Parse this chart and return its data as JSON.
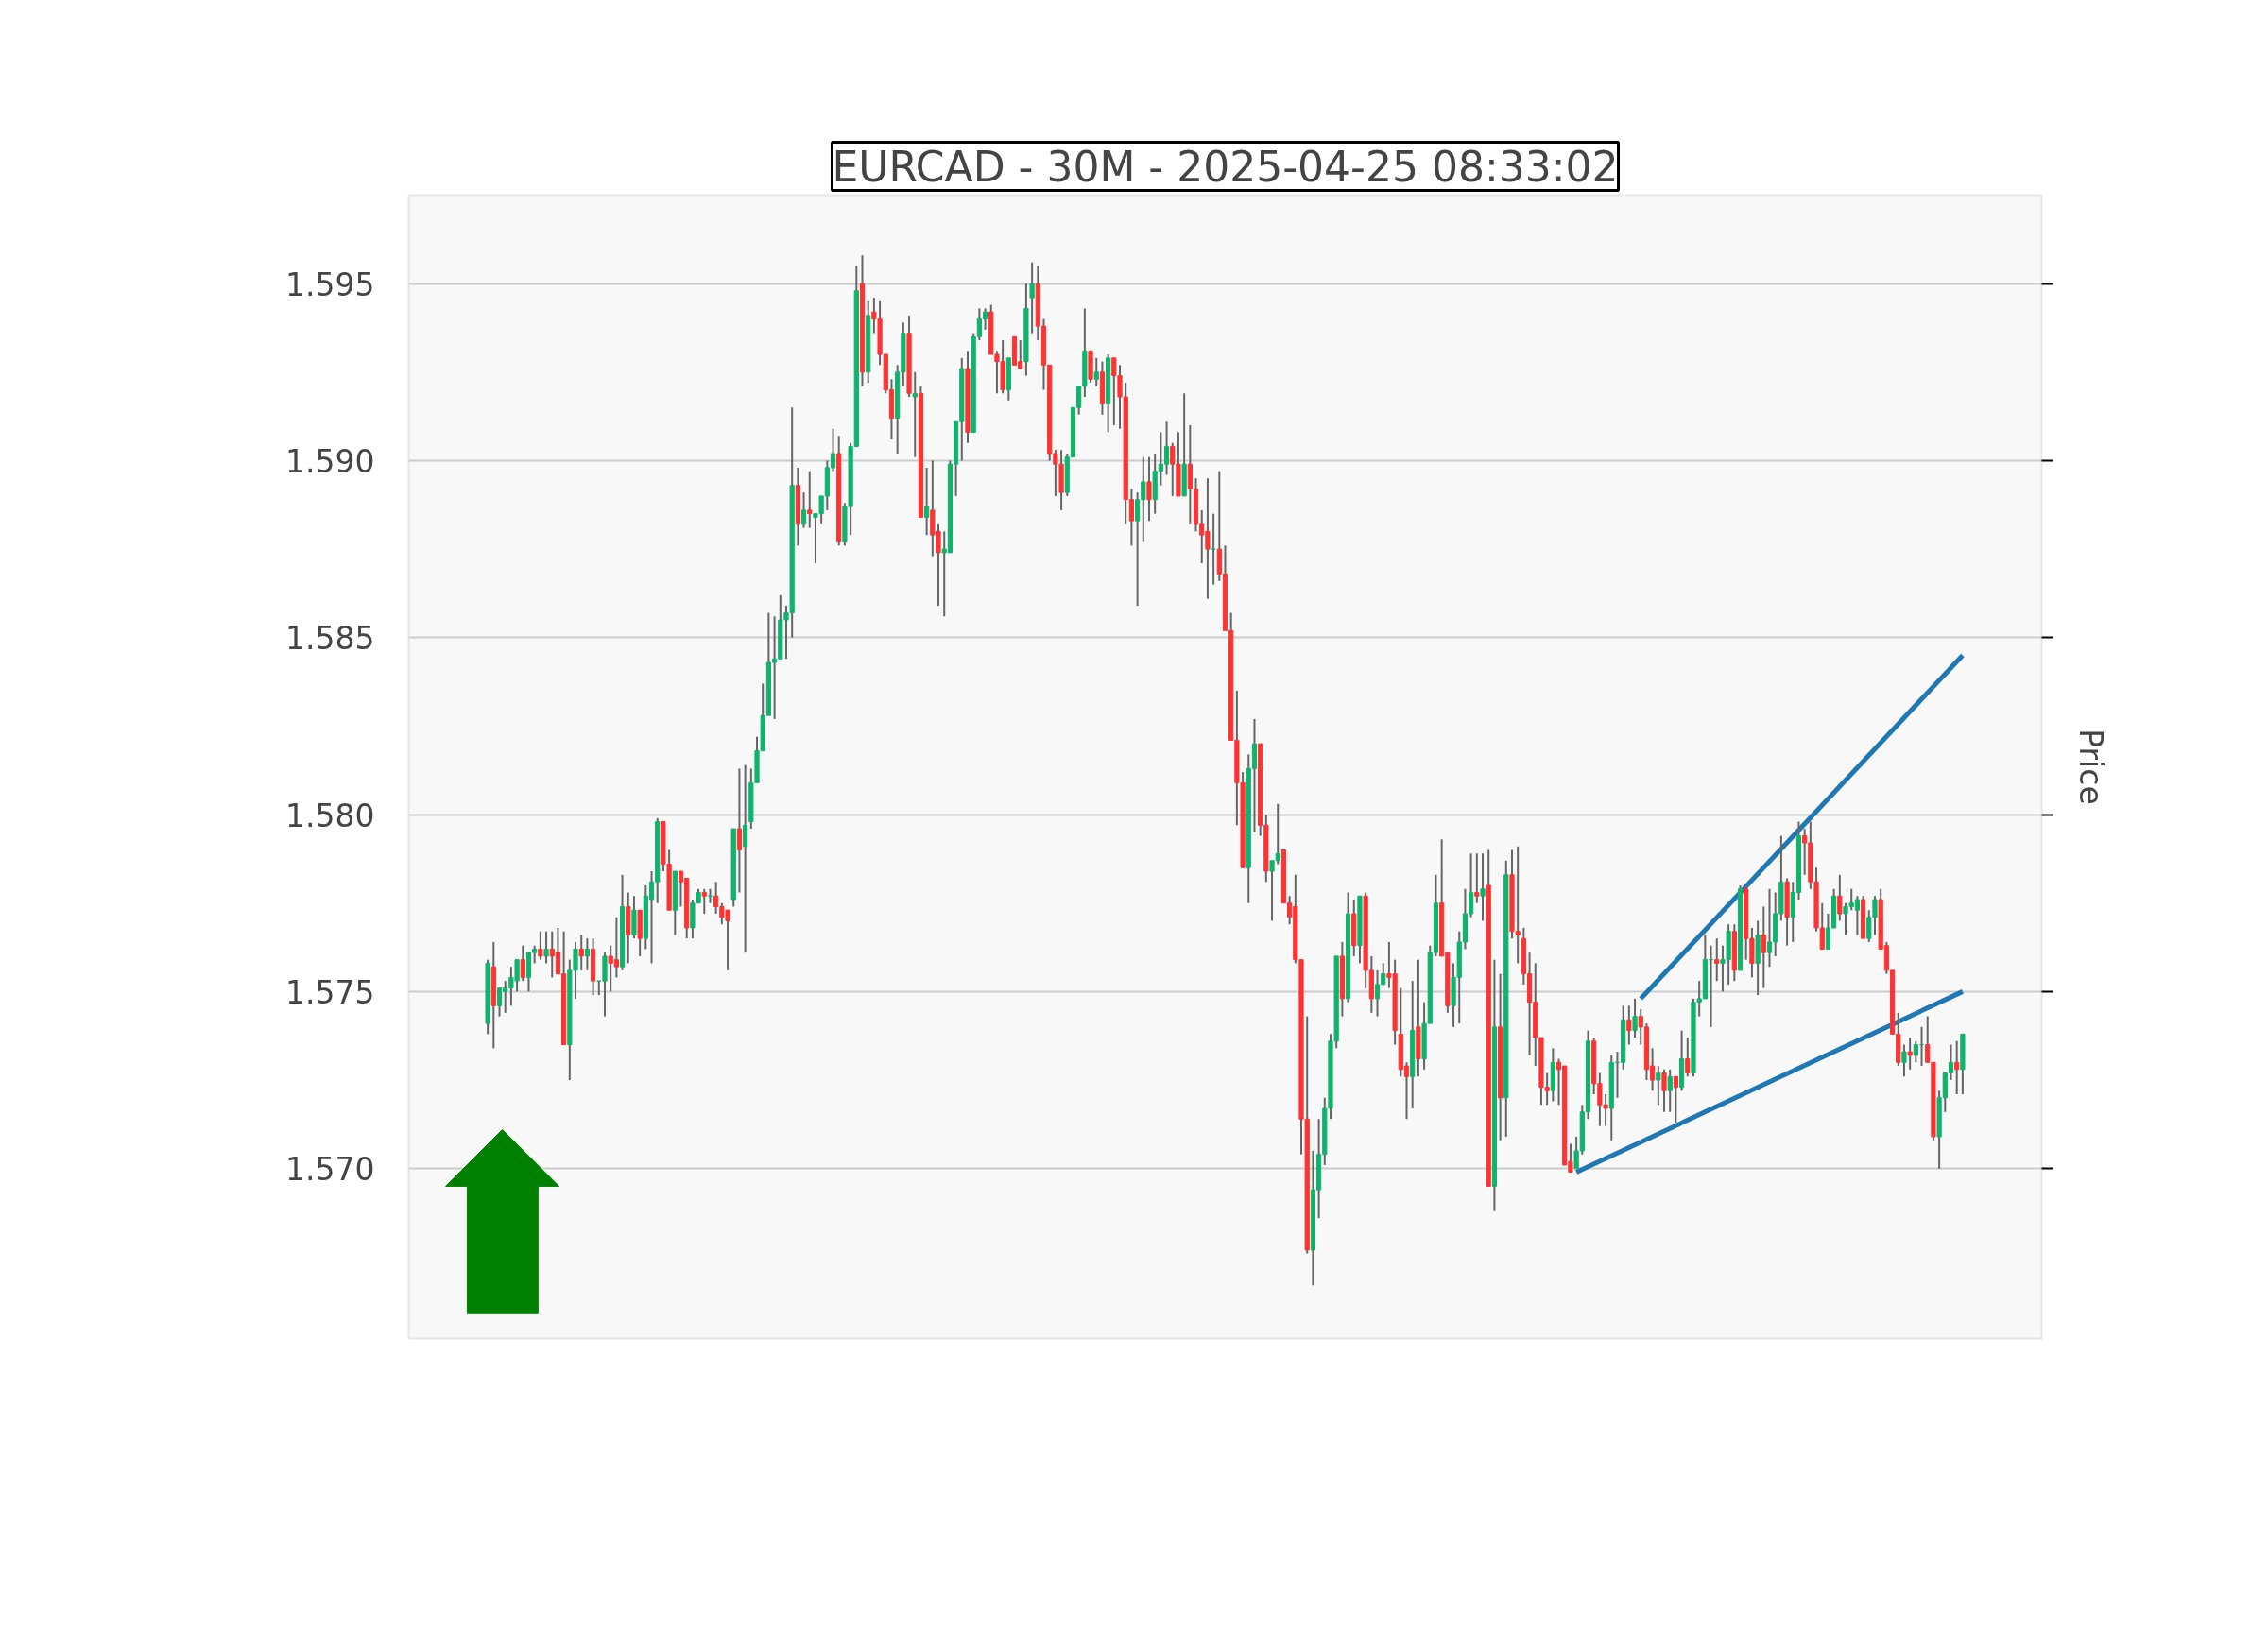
{
  "chart_data": {
    "type": "candlestick",
    "title": "EURCAD - 30M - 2025-04-25 08:33:02",
    "ylabel": "Price",
    "categories": [
      null,
      null,
      null,
      null,
      null,
      null,
      null,
      null,
      null,
      null,
      null,
      null,
      null,
      null,
      null,
      null,
      null,
      null,
      null,
      null,
      null,
      null,
      null,
      null,
      null,
      null,
      null,
      null,
      null,
      null,
      null,
      null,
      null,
      null,
      null,
      null,
      null,
      null,
      null,
      null,
      null,
      null,
      null,
      null,
      null,
      null,
      null,
      null,
      null,
      null,
      null,
      null,
      null,
      null,
      null,
      null,
      null,
      null,
      null,
      null,
      null,
      null,
      null,
      null,
      null,
      null,
      null,
      null,
      null,
      null,
      null,
      null,
      null,
      null,
      null,
      null,
      null,
      null,
      null,
      null,
      null,
      null,
      null,
      null,
      null,
      null,
      null,
      null,
      null,
      null,
      null,
      null,
      null,
      null,
      null,
      null,
      null,
      null,
      null,
      null,
      null,
      null,
      null,
      null,
      null,
      null,
      null,
      null,
      null,
      null,
      null,
      null,
      null,
      null,
      null,
      null,
      null,
      null,
      null,
      null,
      null,
      null,
      null,
      null,
      null,
      null,
      null,
      null,
      null,
      null,
      null,
      null,
      null,
      null,
      null,
      null,
      null,
      null,
      null,
      null,
      null,
      null,
      null,
      null,
      null,
      null,
      null,
      null,
      null,
      null,
      null,
      null,
      null,
      null,
      null,
      null,
      null,
      null,
      null,
      null,
      null,
      null,
      null,
      null,
      null,
      null,
      null,
      null,
      null,
      null,
      null,
      null,
      null,
      null,
      null,
      null,
      null,
      null,
      null,
      null,
      null,
      null,
      null,
      null,
      null,
      null,
      null,
      null,
      null,
      null,
      null,
      null,
      null,
      null,
      null,
      null,
      null,
      null,
      null,
      null,
      null,
      null,
      null,
      null,
      null,
      null,
      null,
      null,
      null,
      null,
      null,
      null,
      null,
      null,
      null,
      null,
      null,
      null,
      null,
      null,
      null,
      null,
      null,
      null,
      null,
      null,
      null,
      null,
      null,
      null,
      null,
      null,
      null,
      null,
      null,
      null,
      null,
      null,
      null,
      null,
      null,
      null,
      null,
      null,
      null,
      null,
      null,
      null,
      null,
      null,
      null,
      null,
      null,
      null,
      null,
      null,
      null,
      null,
      null,
      null,
      null,
      null,
      null,
      null,
      null,
      null,
      null,
      null,
      null,
      null,
      null,
      null,
      null,
      null,
      null,
      null,
      null,
      null,
      null
    ],
    "ohlc": [
      null,
      null,
      null,
      null,
      null,
      null,
      null,
      null,
      null,
      null,
      null,
      null,
      null,
      [
        1.5741,
        1.5759,
        1.5738,
        1.5758
      ],
      [
        1.5757,
        1.5764,
        1.5734,
        1.5746
      ],
      [
        1.5746,
        1.5751,
        1.5743,
        1.5751
      ],
      [
        1.575,
        1.5753,
        1.5744,
        1.5751
      ],
      [
        1.5751,
        1.5757,
        1.5746,
        1.5754
      ],
      [
        1.5753,
        1.5759,
        1.575,
        1.5759
      ],
      [
        1.5759,
        1.5763,
        1.5753,
        1.5754
      ],
      [
        1.5754,
        1.5761,
        1.575,
        1.5761
      ],
      [
        1.5761,
        1.5763,
        1.5758,
        1.5762
      ],
      [
        1.5762,
        1.5767,
        1.5759,
        1.576
      ],
      [
        1.576,
        1.5767,
        1.5758,
        1.5762
      ],
      [
        1.5762,
        1.5767,
        1.5754,
        1.576
      ],
      [
        1.5761,
        1.5768,
        1.5755,
        1.5755
      ],
      [
        1.5755,
        1.5767,
        1.5735,
        1.5735
      ],
      [
        1.5735,
        1.5759,
        1.5725,
        1.5756
      ],
      [
        1.5756,
        1.5764,
        1.5748,
        1.5762
      ],
      [
        1.5762,
        1.5766,
        1.5756,
        1.576
      ],
      [
        1.576,
        1.5765,
        1.5756,
        1.5762
      ],
      [
        1.5762,
        1.5765,
        1.5749,
        1.5753
      ],
      [
        1.5753,
        1.5753,
        1.5749,
        1.5753
      ],
      [
        1.5753,
        1.5761,
        1.5743,
        1.576
      ],
      [
        1.576,
        1.5763,
        1.575,
        1.5758
      ],
      [
        1.5759,
        1.5771,
        1.5754,
        1.5757
      ],
      [
        1.5757,
        1.5783,
        1.5756,
        1.5774
      ],
      [
        1.5774,
        1.5778,
        1.5758,
        1.5766
      ],
      [
        1.5766,
        1.5777,
        1.5765,
        1.5773
      ],
      [
        1.5773,
        1.5773,
        1.576,
        1.5765
      ],
      [
        1.5765,
        1.578,
        1.5762,
        1.5777
      ],
      [
        1.5776,
        1.5784,
        1.5758,
        1.5781
      ],
      [
        1.5781,
        1.5799,
        1.5775,
        1.5798
      ],
      [
        1.5798,
        1.5798,
        1.5784,
        1.5786
      ],
      [
        1.5786,
        1.579,
        1.5773,
        1.5773
      ],
      [
        1.5773,
        1.5784,
        1.5766,
        1.5784
      ],
      [
        1.5784,
        1.5784,
        1.5774,
        1.5781
      ],
      [
        1.5782,
        1.5782,
        1.5765,
        1.5768
      ],
      [
        1.5768,
        1.5776,
        1.5765,
        1.5775
      ],
      [
        1.5775,
        1.5779,
        1.5775,
        1.5778
      ],
      [
        1.5778,
        1.5779,
        1.5772,
        1.5777
      ],
      [
        1.5777,
        1.5779,
        1.5775,
        1.5777
      ],
      [
        1.5777,
        1.5781,
        1.5772,
        1.5774
      ],
      [
        1.5774,
        1.5775,
        1.5769,
        1.5771
      ],
      [
        1.5773,
        1.5773,
        1.5756,
        1.577
      ],
      [
        1.5776,
        1.5796,
        1.5774,
        1.5796
      ],
      [
        1.5796,
        1.5813,
        1.5778,
        1.579
      ],
      [
        1.5791,
        1.5814,
        1.5761,
        1.5797
      ],
      [
        1.5798,
        1.5813,
        1.5796,
        1.5809
      ],
      [
        1.5809,
        1.5822,
        1.5809,
        1.5818
      ],
      [
        1.5818,
        1.5837,
        1.5818,
        1.5828
      ],
      [
        1.5828,
        1.5857,
        1.5828,
        1.5843
      ],
      [
        1.5843,
        1.5856,
        1.5827,
        1.5844
      ],
      [
        1.5844,
        1.5862,
        1.5844,
        1.5855
      ],
      [
        1.5855,
        1.5859,
        1.5844,
        1.5857
      ],
      [
        1.5857,
        1.5915,
        1.585,
        1.5893
      ],
      [
        1.5893,
        1.5898,
        1.5876,
        1.5882
      ],
      [
        1.5882,
        1.5891,
        1.5881,
        1.5886
      ],
      [
        1.5886,
        1.5897,
        1.5881,
        1.5885
      ],
      [
        1.5884,
        1.5885,
        1.5871,
        1.5885
      ],
      [
        1.5885,
        1.589,
        1.5882,
        1.589
      ],
      [
        1.589,
        1.59,
        1.5886,
        1.5898
      ],
      [
        1.5898,
        1.5909,
        1.5897,
        1.5902
      ],
      [
        1.5902,
        1.5907,
        1.5876,
        1.5877
      ],
      [
        1.5877,
        1.5888,
        1.5876,
        1.5887
      ],
      [
        1.5887,
        1.5905,
        1.5879,
        1.5904
      ],
      [
        1.5904,
        1.5955,
        1.5904,
        1.5948
      ],
      [
        1.595,
        1.5958,
        1.5921,
        1.5925
      ],
      [
        1.5925,
        1.5945,
        1.5922,
        1.5941
      ],
      [
        1.5942,
        1.5946,
        1.5936,
        1.594
      ],
      [
        1.594,
        1.5945,
        1.5927,
        1.593
      ],
      [
        1.593,
        1.593,
        1.5919,
        1.592
      ],
      [
        1.592,
        1.5923,
        1.5906,
        1.5912
      ],
      [
        1.5912,
        1.5927,
        1.5902,
        1.5925
      ],
      [
        1.5925,
        1.5939,
        1.5921,
        1.5936
      ],
      [
        1.5936,
        1.5941,
        1.5918,
        1.5919
      ],
      [
        1.5918,
        1.5925,
        1.5901,
        1.5919
      ],
      [
        1.5919,
        1.5921,
        1.5884,
        1.5884
      ],
      [
        1.5884,
        1.5898,
        1.5879,
        1.5887
      ],
      [
        1.5886,
        1.59,
        1.5873,
        1.5879
      ],
      [
        1.588,
        1.5882,
        1.5859,
        1.5874
      ],
      [
        1.5874,
        1.588,
        1.5856,
        1.5875
      ],
      [
        1.5874,
        1.59,
        1.5874,
        1.5899
      ],
      [
        1.5899,
        1.5911,
        1.589,
        1.5911
      ],
      [
        1.5911,
        1.5929,
        1.59,
        1.5926
      ],
      [
        1.5926,
        1.5931,
        1.5905,
        1.5908
      ],
      [
        1.5908,
        1.5936,
        1.5908,
        1.5935
      ],
      [
        1.5935,
        1.5943,
        1.5934,
        1.594
      ],
      [
        1.594,
        1.5943,
        1.5937,
        1.5942
      ],
      [
        1.5942,
        1.5944,
        1.593,
        1.593
      ],
      [
        1.593,
        1.5931,
        1.5919,
        1.5928
      ],
      [
        1.5928,
        1.5934,
        1.5919,
        1.592
      ],
      [
        1.592,
        1.5929,
        1.5917,
        1.5929
      ],
      [
        1.5935,
        1.5935,
        1.5927,
        1.5927
      ],
      [
        1.5928,
        1.5934,
        1.5926,
        1.5926
      ],
      [
        1.5928,
        1.595,
        1.5924,
        1.5943
      ],
      [
        1.5946,
        1.5956,
        1.5936,
        1.595
      ],
      [
        1.595,
        1.5955,
        1.5934,
        1.5938
      ],
      [
        1.5938,
        1.594,
        1.592,
        1.5927
      ],
      [
        1.5927,
        1.5927,
        1.59,
        1.5902
      ],
      [
        1.5902,
        1.5903,
        1.589,
        1.5899
      ],
      [
        1.5899,
        1.5903,
        1.5886,
        1.5891
      ],
      [
        1.5891,
        1.5902,
        1.589,
        1.5901
      ],
      [
        1.5901,
        1.5915,
        1.5901,
        1.5915
      ],
      [
        1.5915,
        1.5921,
        1.5913,
        1.5921
      ],
      [
        1.5921,
        1.5943,
        1.5918,
        1.5931
      ],
      [
        1.5931,
        1.5931,
        1.5922,
        1.5923
      ],
      [
        1.5923,
        1.5929,
        1.5921,
        1.5925
      ],
      [
        1.5925,
        1.5928,
        1.5913,
        1.5916
      ],
      [
        1.5916,
        1.593,
        1.5908,
        1.5929
      ],
      [
        1.5929,
        1.5929,
        1.591,
        1.5924
      ],
      [
        1.5924,
        1.5927,
        1.5909,
        1.5918
      ],
      [
        1.5918,
        1.5922,
        1.5882,
        1.5889
      ],
      [
        1.5889,
        1.5892,
        1.5876,
        1.5883
      ],
      [
        1.5883,
        1.5891,
        1.5859,
        1.5889
      ],
      [
        1.5889,
        1.5901,
        1.5877,
        1.5894
      ],
      [
        1.5894,
        1.5901,
        1.5883,
        1.5889
      ],
      [
        1.5889,
        1.5902,
        1.5885,
        1.5897
      ],
      [
        1.5897,
        1.5908,
        1.5893,
        1.5899
      ],
      [
        1.5899,
        1.5911,
        1.5896,
        1.5904
      ],
      [
        1.5904,
        1.5905,
        1.589,
        1.5899
      ],
      [
        1.5899,
        1.5908,
        1.589,
        1.589
      ],
      [
        1.589,
        1.5919,
        1.589,
        1.5899
      ],
      [
        1.5899,
        1.591,
        1.5882,
        1.5892
      ],
      [
        1.5892,
        1.5895,
        1.588,
        1.5882
      ],
      [
        1.5882,
        1.5886,
        1.5871,
        1.5879
      ],
      [
        1.588,
        1.5895,
        1.5861,
        1.5875
      ],
      [
        1.5875,
        1.5885,
        1.5865,
        1.5875
      ],
      [
        1.5875,
        1.5897,
        1.5866,
        1.5868
      ],
      [
        1.5868,
        1.5876,
        1.5852,
        1.5852
      ],
      [
        1.5852,
        1.5857,
        1.5821,
        1.5821
      ],
      [
        1.5821,
        1.5835,
        1.5797,
        1.5809
      ],
      [
        1.5809,
        1.5812,
        1.5785,
        1.5785
      ],
      [
        1.5785,
        1.5817,
        1.5775,
        1.5813
      ],
      [
        1.5813,
        1.5827,
        1.5795,
        1.582
      ],
      [
        1.582,
        1.582,
        1.5794,
        1.5797
      ],
      [
        1.5797,
        1.58,
        1.5781,
        1.5784
      ],
      [
        1.5784,
        1.5787,
        1.577,
        1.5787
      ],
      [
        1.5787,
        1.5803,
        1.5786,
        1.5789
      ],
      [
        1.579,
        1.579,
        1.5775,
        1.5775
      ],
      [
        1.5775,
        1.5777,
        1.5769,
        1.5771
      ],
      [
        1.5774,
        1.5783,
        1.5758,
        1.5759
      ],
      [
        1.5759,
        1.5759,
        1.5704,
        1.5714
      ],
      [
        1.5714,
        1.5743,
        1.5676,
        1.5677
      ],
      [
        1.5677,
        1.5705,
        1.5667,
        1.5694
      ],
      [
        1.5694,
        1.5714,
        1.5686,
        1.5704
      ],
      [
        1.5704,
        1.572,
        1.5701,
        1.5717
      ],
      [
        1.5717,
        1.5738,
        1.5714,
        1.5736
      ],
      [
        1.5736,
        1.576,
        1.5734,
        1.576
      ],
      [
        1.576,
        1.5764,
        1.5743,
        1.5748
      ],
      [
        1.5748,
        1.5778,
        1.5747,
        1.5772
      ],
      [
        1.5772,
        1.5776,
        1.576,
        1.5763
      ],
      [
        1.5763,
        1.5777,
        1.5758,
        1.5777
      ],
      [
        1.5777,
        1.5778,
        1.5751,
        1.5756
      ],
      [
        1.5756,
        1.576,
        1.5744,
        1.5748
      ],
      [
        1.5748,
        1.5756,
        1.5743,
        1.5752
      ],
      [
        1.5752,
        1.5758,
        1.5752,
        1.5755
      ],
      [
        1.5755,
        1.5764,
        1.5751,
        1.5754
      ],
      [
        1.5755,
        1.5759,
        1.5735,
        1.5739
      ],
      [
        1.5738,
        1.5751,
        1.5726,
        1.5728
      ],
      [
        1.5729,
        1.573,
        1.5714,
        1.5726
      ],
      [
        1.5726,
        1.5753,
        1.5717,
        1.5739
      ],
      [
        1.574,
        1.5759,
        1.5726,
        1.5731
      ],
      [
        1.5731,
        1.5747,
        1.5728,
        1.5741
      ],
      [
        1.5741,
        1.5763,
        1.5741,
        1.5761
      ],
      [
        1.5761,
        1.5783,
        1.576,
        1.5775
      ],
      [
        1.5775,
        1.5793,
        1.576,
        1.576
      ],
      [
        1.5761,
        1.5761,
        1.5744,
        1.5746
      ],
      [
        1.5746,
        1.5758,
        1.574,
        1.5754
      ],
      [
        1.5754,
        1.5767,
        1.5741,
        1.5764
      ],
      [
        1.5764,
        1.5779,
        1.5762,
        1.5772
      ],
      [
        1.5772,
        1.5789,
        1.5771,
        1.5778
      ],
      [
        1.5778,
        1.5789,
        1.5775,
        1.5777
      ],
      [
        1.5777,
        1.5789,
        1.577,
        1.5779
      ],
      [
        1.578,
        1.579,
        1.5695,
        1.5695
      ],
      [
        1.5695,
        1.5759,
        1.5688,
        1.574
      ],
      [
        1.574,
        1.5755,
        1.5708,
        1.572
      ],
      [
        1.572,
        1.5787,
        1.5709,
        1.5783
      ],
      [
        1.5783,
        1.579,
        1.5765,
        1.5767
      ],
      [
        1.5767,
        1.5791,
        1.5758,
        1.5766
      ],
      [
        1.5765,
        1.5768,
        1.5752,
        1.5755
      ],
      [
        1.5755,
        1.5761,
        1.5732,
        1.5747
      ],
      [
        1.5747,
        1.5758,
        1.5729,
        1.5737
      ],
      [
        1.5737,
        1.5737,
        1.5718,
        1.5723
      ],
      [
        1.5723,
        1.5727,
        1.5718,
        1.5722
      ],
      [
        1.5722,
        1.5734,
        1.5719,
        1.573
      ],
      [
        1.573,
        1.5731,
        1.5718,
        1.5728
      ],
      [
        1.5729,
        1.5729,
        1.5701,
        1.5701
      ],
      [
        1.5702,
        1.5707,
        1.5699,
        1.5699
      ],
      [
        1.57,
        1.5709,
        1.57,
        1.5705
      ],
      [
        1.5705,
        1.5718,
        1.5704,
        1.5716
      ],
      [
        1.5716,
        1.5739,
        1.5714,
        1.5736
      ],
      [
        1.5736,
        1.5737,
        1.5721,
        1.5724
      ],
      [
        1.5724,
        1.5727,
        1.5712,
        1.5718
      ],
      [
        1.5718,
        1.5721,
        1.5712,
        1.5717
      ],
      [
        1.5717,
        1.5732,
        1.5708,
        1.573
      ],
      [
        1.573,
        1.5733,
        1.572,
        1.573
      ],
      [
        1.573,
        1.5746,
        1.5728,
        1.5742
      ],
      [
        1.5742,
        1.5746,
        1.5735,
        1.5739
      ],
      [
        1.5739,
        1.5748,
        1.5737,
        1.5743
      ],
      [
        1.5743,
        1.5745,
        1.5735,
        1.574
      ],
      [
        1.574,
        1.5741,
        1.5725,
        1.5728
      ],
      [
        1.5729,
        1.5734,
        1.5722,
        1.5725
      ],
      [
        1.5725,
        1.5729,
        1.5718,
        1.5727
      ],
      [
        1.5727,
        1.5728,
        1.5716,
        1.5722
      ],
      [
        1.5722,
        1.5728,
        1.5716,
        1.5726
      ],
      [
        1.5726,
        1.5726,
        1.5713,
        1.5723
      ],
      [
        1.5723,
        1.5739,
        1.5722,
        1.5731
      ],
      [
        1.5731,
        1.5737,
        1.5726,
        1.5727
      ],
      [
        1.5727,
        1.5748,
        1.5726,
        1.5747
      ],
      [
        1.5747,
        1.5753,
        1.5743,
        1.5748
      ],
      [
        1.5748,
        1.5766,
        1.5748,
        1.5759
      ],
      [
        1.5759,
        1.5763,
        1.574,
        1.5759
      ],
      [
        1.5759,
        1.5765,
        1.5753,
        1.5758
      ],
      [
        1.5758,
        1.5763,
        1.575,
        1.5759
      ],
      [
        1.5759,
        1.5769,
        1.5752,
        1.5767
      ],
      [
        1.5767,
        1.5769,
        1.5753,
        1.5756
      ],
      [
        1.5756,
        1.578,
        1.5756,
        1.5779
      ],
      [
        1.5779,
        1.578,
        1.5759,
        1.5765
      ],
      [
        1.5765,
        1.5768,
        1.5754,
        1.5758
      ],
      [
        1.5758,
        1.577,
        1.5749,
        1.5766
      ],
      [
        1.5766,
        1.5774,
        1.5751,
        1.5761
      ],
      [
        1.5761,
        1.5779,
        1.5757,
        1.5764
      ],
      [
        1.5764,
        1.5778,
        1.576,
        1.5772
      ],
      [
        1.5772,
        1.5794,
        1.577,
        1.5781
      ],
      [
        1.5781,
        1.5782,
        1.5763,
        1.5771
      ],
      [
        1.5771,
        1.5781,
        1.5764,
        1.5778
      ],
      [
        1.5778,
        1.5798,
        1.5776,
        1.5794
      ],
      [
        1.5794,
        1.5796,
        1.5783,
        1.5792
      ],
      [
        1.5792,
        1.5798,
        1.5779,
        1.5781
      ],
      [
        1.5781,
        1.5785,
        1.5767,
        1.5768
      ],
      [
        1.5768,
        1.5775,
        1.5762,
        1.5762
      ],
      [
        1.5762,
        1.5772,
        1.5762,
        1.5768
      ],
      [
        1.5768,
        1.5779,
        1.5768,
        1.5777
      ],
      [
        1.5777,
        1.5783,
        1.577,
        1.5772
      ],
      [
        1.5772,
        1.5775,
        1.5766,
        1.5774
      ],
      [
        1.5774,
        1.5779,
        1.5773,
        1.5775
      ],
      [
        1.5773,
        1.5777,
        1.5766,
        1.5776
      ],
      [
        1.5776,
        1.5777,
        1.5765,
        1.5765
      ],
      [
        1.5765,
        1.5773,
        1.5764,
        1.5771
      ],
      [
        1.5771,
        1.5777,
        1.5766,
        1.5776
      ],
      [
        1.5776,
        1.5779,
        1.5762,
        1.5762
      ],
      [
        1.5763,
        1.5764,
        1.5755,
        1.5756
      ],
      [
        1.5756,
        1.5756,
        1.5738,
        1.5738
      ],
      [
        1.5738,
        1.5744,
        1.5729,
        1.573
      ],
      [
        1.573,
        1.5735,
        1.5726,
        1.5733
      ],
      [
        1.5733,
        1.5737,
        1.5728,
        1.5732
      ],
      [
        1.5732,
        1.5736,
        1.573,
        1.5735
      ],
      [
        1.5735,
        1.574,
        1.5729,
        1.5735
      ],
      [
        1.5735,
        1.5743,
        1.573,
        1.573
      ],
      [
        1.573,
        1.573,
        1.5708,
        1.5709
      ],
      [
        1.5709,
        1.5722,
        1.57,
        1.572
      ],
      [
        1.572,
        1.5727,
        1.5716,
        1.5727
      ],
      [
        1.5727,
        1.5735,
        1.5725,
        1.573
      ],
      [
        1.573,
        1.5736,
        1.5721,
        1.5728
      ],
      [
        1.5728,
        1.5738,
        1.5721,
        1.5738
      ],
      null,
      null,
      null,
      null,
      null,
      null,
      null,
      null,
      null,
      null,
      null,
      null,
      null
    ],
    "series": [
      {
        "type": "line",
        "color": "#1f77b4",
        "values": [
          null,
          null,
          null,
          null,
          null,
          null,
          null,
          null,
          null,
          null,
          null,
          null,
          null,
          null,
          null,
          null,
          null,
          null,
          null,
          null,
          null,
          null,
          null,
          null,
          null,
          null,
          null,
          null,
          null,
          null,
          null,
          null,
          null,
          null,
          null,
          null,
          null,
          null,
          null,
          null,
          null,
          null,
          null,
          null,
          null,
          null,
          null,
          null,
          null,
          null,
          null,
          null,
          null,
          null,
          null,
          null,
          null,
          null,
          null,
          null,
          null,
          null,
          null,
          null,
          null,
          null,
          null,
          null,
          null,
          null,
          null,
          null,
          null,
          null,
          null,
          null,
          null,
          null,
          null,
          null,
          null,
          null,
          null,
          null,
          null,
          null,
          null,
          null,
          null,
          null,
          null,
          null,
          null,
          null,
          null,
          null,
          null,
          null,
          null,
          null,
          null,
          null,
          null,
          null,
          null,
          null,
          null,
          null,
          null,
          null,
          null,
          null,
          null,
          null,
          null,
          null,
          null,
          null,
          null,
          null,
          null,
          null,
          null,
          null,
          null,
          null,
          null,
          null,
          null,
          null,
          null,
          null,
          null,
          null,
          null,
          null,
          null,
          null,
          null,
          null,
          null,
          null,
          null,
          null,
          null,
          null,
          null,
          null,
          null,
          null,
          null,
          null,
          null,
          null,
          null,
          null,
          null,
          null,
          null,
          null,
          null,
          null,
          null,
          null,
          null,
          null,
          null,
          null,
          null,
          null,
          null,
          null,
          null,
          null,
          null,
          null,
          null,
          null,
          null,
          null,
          null,
          null,
          null,
          null,
          null,
          null,
          null,
          null,
          null,
          null,
          null,
          null,
          null,
          null,
          null,
          null,
          null,
          null,
          null,
          1.5699,
          null,
          null,
          null,
          null,
          null,
          null,
          null,
          null,
          null,
          null,
          null,
          null,
          null,
          null,
          null,
          null,
          null,
          null,
          null,
          null,
          null,
          null,
          null,
          null,
          null,
          null,
          null,
          null,
          null,
          null,
          null,
          null,
          null,
          null,
          null,
          null,
          null,
          null,
          null,
          null,
          null,
          null,
          null,
          null,
          null,
          null,
          null,
          null,
          null,
          null,
          null,
          null,
          null,
          null,
          null,
          null,
          null,
          null,
          null,
          null,
          null,
          null,
          null,
          null,
          null,
          1.575,
          null,
          null,
          null,
          null,
          null,
          null,
          null,
          null,
          null,
          null,
          null,
          null,
          null
        ]
      },
      {
        "type": "line",
        "color": "#1f77b4",
        "values": [
          null,
          null,
          null,
          null,
          null,
          null,
          null,
          null,
          null,
          null,
          null,
          null,
          null,
          null,
          null,
          null,
          null,
          null,
          null,
          null,
          null,
          null,
          null,
          null,
          null,
          null,
          null,
          null,
          null,
          null,
          null,
          null,
          null,
          null,
          null,
          null,
          null,
          null,
          null,
          null,
          null,
          null,
          null,
          null,
          null,
          null,
          null,
          null,
          null,
          null,
          null,
          null,
          null,
          null,
          null,
          null,
          null,
          null,
          null,
          null,
          null,
          null,
          null,
          null,
          null,
          null,
          null,
          null,
          null,
          null,
          null,
          null,
          null,
          null,
          null,
          null,
          null,
          null,
          null,
          null,
          null,
          null,
          null,
          null,
          null,
          null,
          null,
          null,
          null,
          null,
          null,
          null,
          null,
          null,
          null,
          null,
          null,
          null,
          null,
          null,
          null,
          null,
          null,
          null,
          null,
          null,
          null,
          null,
          null,
          null,
          null,
          null,
          null,
          null,
          null,
          null,
          null,
          null,
          null,
          null,
          null,
          null,
          null,
          null,
          null,
          null,
          null,
          null,
          null,
          null,
          null,
          null,
          null,
          null,
          null,
          null,
          null,
          null,
          null,
          null,
          null,
          null,
          null,
          null,
          null,
          null,
          null,
          null,
          null,
          null,
          null,
          null,
          null,
          null,
          null,
          null,
          null,
          null,
          null,
          null,
          null,
          null,
          null,
          null,
          null,
          null,
          null,
          null,
          null,
          null,
          null,
          null,
          null,
          null,
          null,
          null,
          null,
          null,
          null,
          null,
          null,
          null,
          null,
          null,
          null,
          null,
          null,
          null,
          null,
          null,
          null,
          null,
          null,
          null,
          null,
          null,
          null,
          null,
          null,
          null,
          null,
          null,
          null,
          null,
          null,
          null,
          null,
          null,
          null,
          null,
          1.5748,
          null,
          null,
          null,
          null,
          null,
          null,
          null,
          null,
          null,
          null,
          null,
          null,
          null,
          null,
          null,
          null,
          null,
          null,
          null,
          null,
          null,
          null,
          null,
          null,
          null,
          null,
          null,
          null,
          null,
          null,
          null,
          null,
          null,
          null,
          null,
          null,
          null,
          null,
          null,
          null,
          null,
          null,
          null,
          null,
          null,
          null,
          null,
          null,
          null,
          null,
          null,
          null,
          null,
          null,
          1.5845,
          null,
          null,
          null,
          null,
          null,
          null,
          null,
          null,
          null,
          null,
          null,
          null,
          null
        ]
      }
    ],
    "ylim": [
      1.5652,
      1.5975
    ],
    "yticks": [
      {
        "value": 1.57,
        "label": "1.570"
      },
      {
        "value": 1.575,
        "label": "1.575"
      },
      {
        "value": 1.58,
        "label": "1.580"
      },
      {
        "value": 1.585,
        "label": "1.585"
      },
      {
        "value": 1.59,
        "label": "1.590"
      },
      {
        "value": 1.595,
        "label": "1.595"
      }
    ],
    "grid": "y",
    "tick_labels": "y"
  }
}
